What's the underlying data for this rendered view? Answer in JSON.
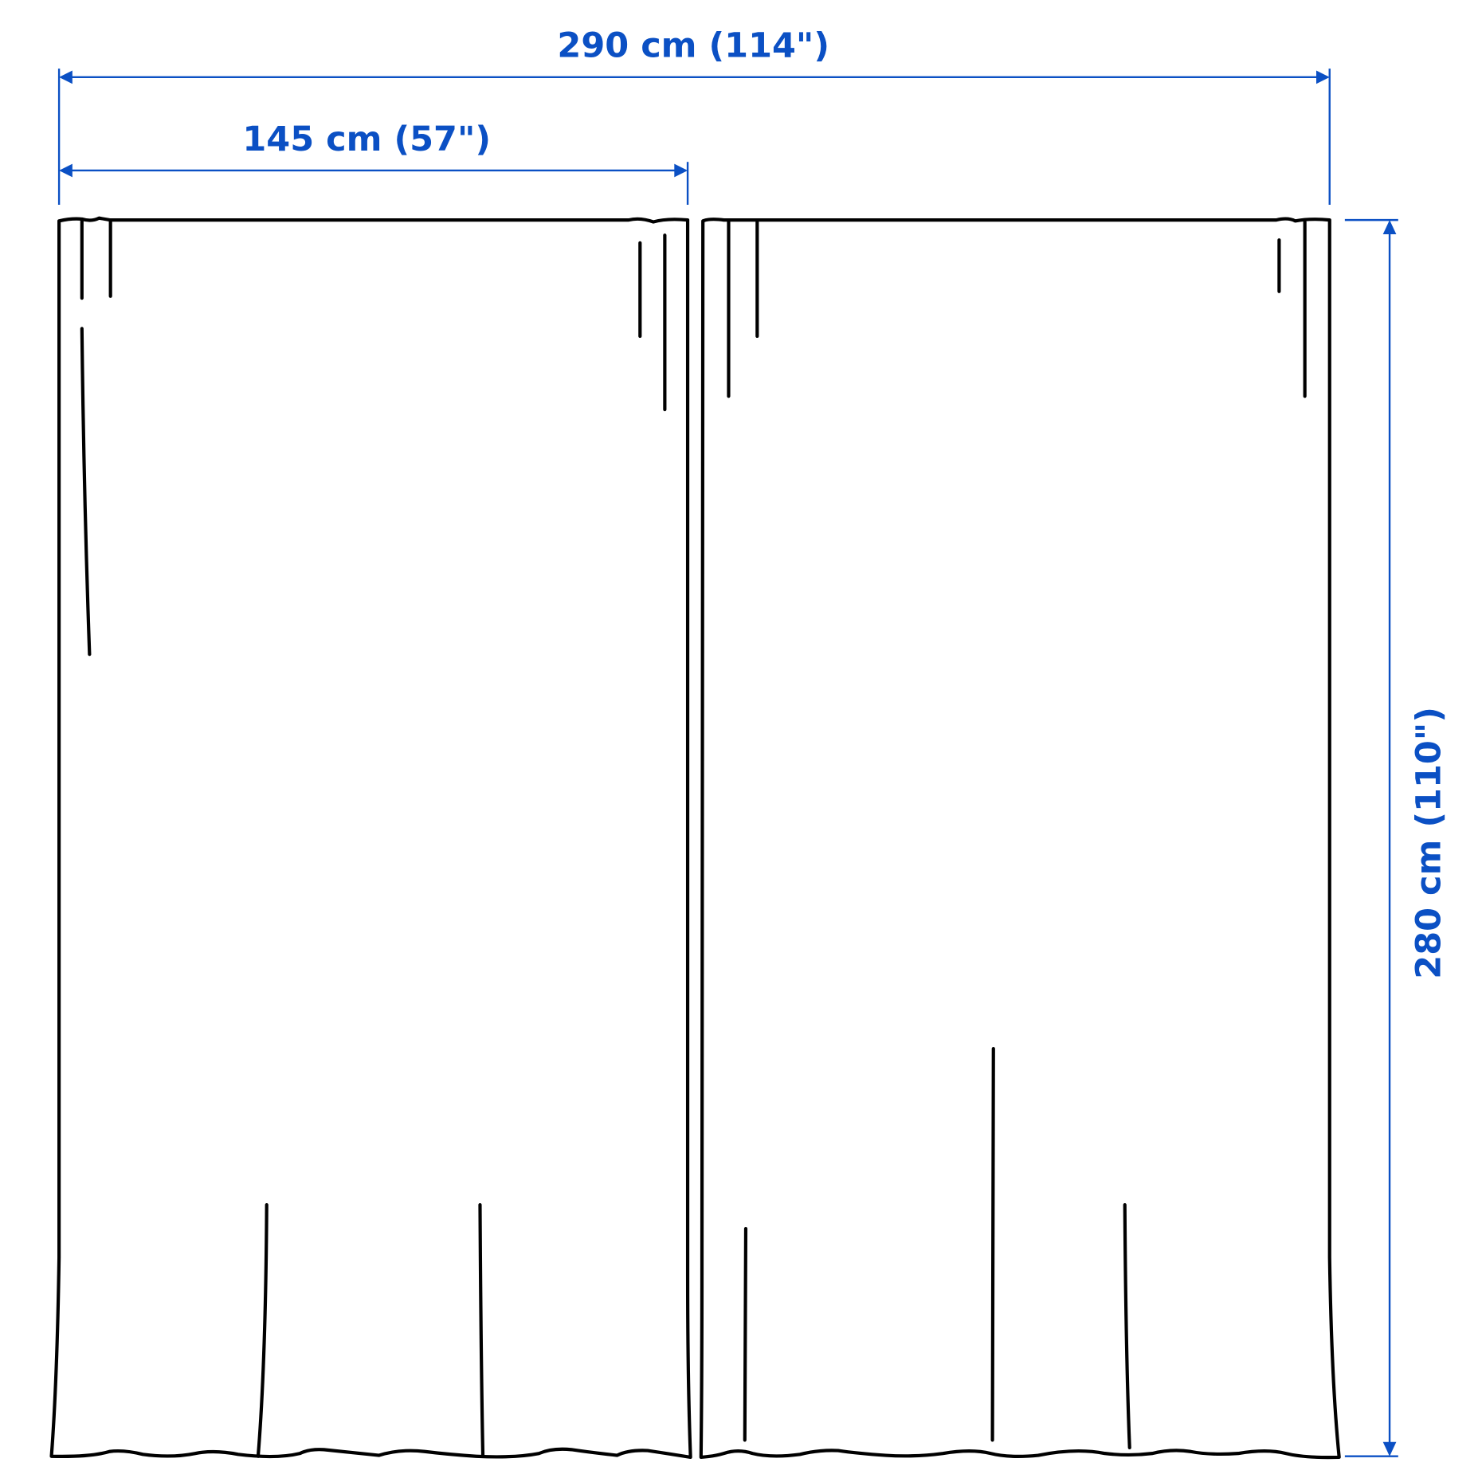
{
  "dimensions": {
    "total_width": "290 cm (114\")",
    "panel_width": "145 cm (57\")",
    "height": "280 cm (110\")"
  },
  "colors": {
    "dimension": "#0b50c4",
    "outline": "#000000"
  }
}
